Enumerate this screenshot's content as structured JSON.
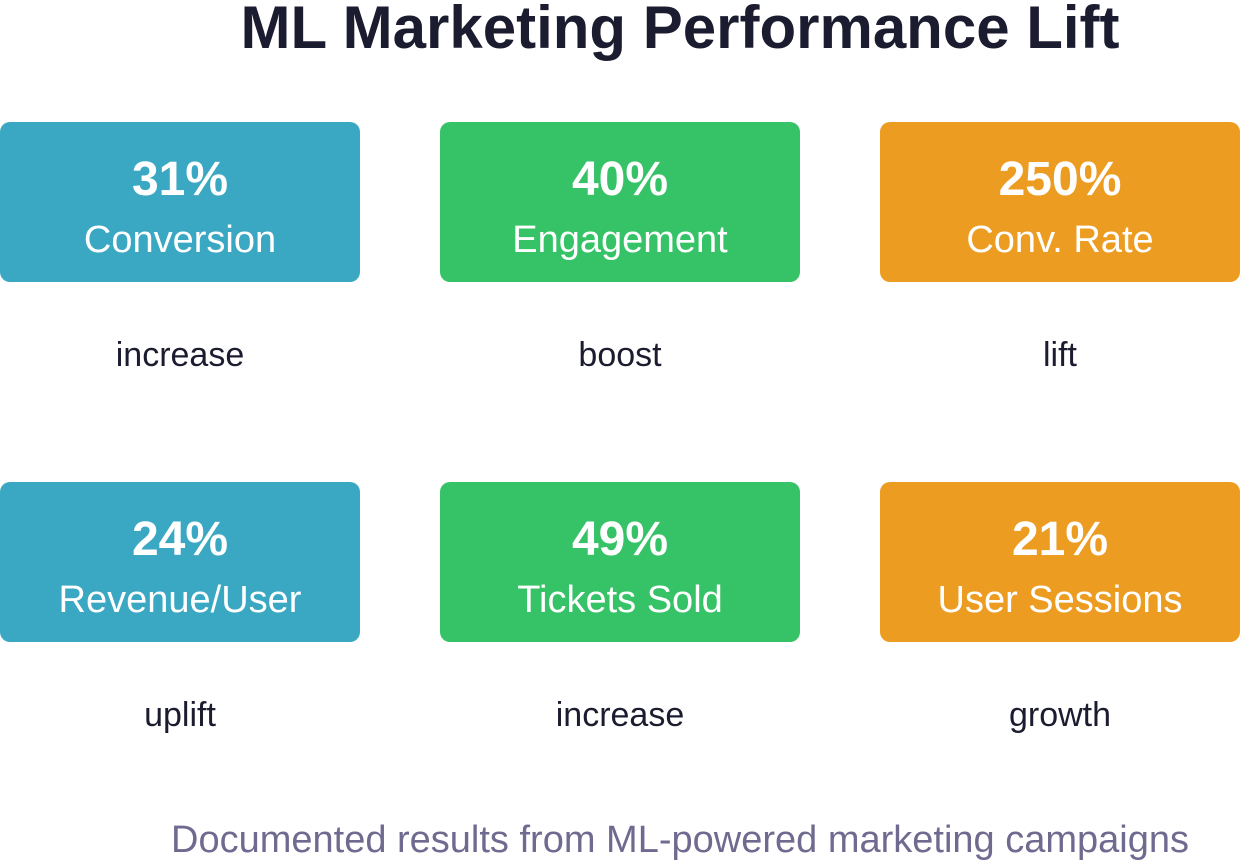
{
  "header": {
    "title": "ML Marketing Performance Lift"
  },
  "cards": [
    {
      "value": "31%",
      "label": "Conversion",
      "caption": "increase"
    },
    {
      "value": "40%",
      "label": "Engagement",
      "caption": "boost"
    },
    {
      "value": "250%",
      "label": "Conv. Rate",
      "caption": "lift"
    },
    {
      "value": "24%",
      "label": "Revenue/User",
      "caption": "uplift"
    },
    {
      "value": "49%",
      "label": "Tickets Sold",
      "caption": "increase"
    },
    {
      "value": "21%",
      "label": "User Sessions",
      "caption": "growth"
    }
  ],
  "footer": {
    "text": "Documented results from ML-powered marketing campaigns"
  }
}
